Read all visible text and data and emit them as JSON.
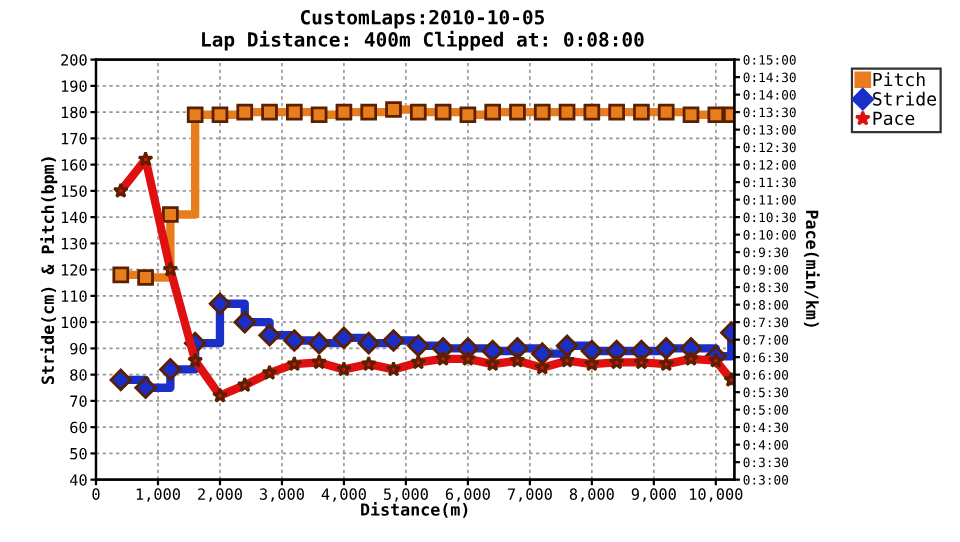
{
  "chart_data": {
    "type": "step",
    "title": "CustomLaps:2010-10-05",
    "subtitle": "Lap Distance: 400m Clipped at: 0:08:00",
    "xlabel": "Distance(m)",
    "ylabel": "Stride(cm) & Pitch(bpm)",
    "y2label": "Pace(min/km)",
    "x": [
      400,
      800,
      1200,
      1600,
      2000,
      2400,
      2800,
      3200,
      3600,
      4000,
      4400,
      4800,
      5200,
      5600,
      6000,
      6400,
      6800,
      7200,
      7600,
      8000,
      8400,
      8800,
      9200,
      9600,
      10000,
      10250
    ],
    "series": [
      {
        "name": "Pitch",
        "color": "#e87d1e",
        "marker": "square",
        "values": [
          118,
          117,
          141,
          179,
          179,
          180,
          180,
          180,
          179,
          180,
          180,
          181,
          180,
          180,
          179,
          180,
          180,
          180,
          180,
          180,
          180,
          180,
          180,
          179,
          179,
          179
        ]
      },
      {
        "name": "Stride",
        "color": "#1a2fc8",
        "marker": "diamond",
        "values": [
          78,
          75,
          82,
          92,
          107,
          100,
          95,
          93,
          92,
          94,
          92,
          93,
          91,
          90,
          90,
          89,
          90,
          88,
          91,
          89,
          89,
          89,
          90,
          90,
          87,
          96
        ]
      },
      {
        "name": "Pace",
        "type": "line",
        "axis": "y2",
        "color": "#e01010",
        "marker": "star",
        "values": [
          11.25,
          12.15,
          9.0,
          6.4,
          5.4,
          5.7,
          6.05,
          6.3,
          6.35,
          6.15,
          6.3,
          6.15,
          6.35,
          6.45,
          6.45,
          6.3,
          6.4,
          6.2,
          6.4,
          6.3,
          6.35,
          6.35,
          6.3,
          6.45,
          6.4,
          5.85
        ]
      }
    ],
    "xlim": [
      0,
      10300
    ],
    "xticks": [
      {
        "value": 0,
        "label": "0"
      },
      {
        "value": 1000,
        "label": "1,000"
      },
      {
        "value": 2000,
        "label": "2,000"
      },
      {
        "value": 3000,
        "label": "3,000"
      },
      {
        "value": 4000,
        "label": "4,000"
      },
      {
        "value": 5000,
        "label": "5,000"
      },
      {
        "value": 6000,
        "label": "6,000"
      },
      {
        "value": 7000,
        "label": "7,000"
      },
      {
        "value": 8000,
        "label": "8,000"
      },
      {
        "value": 9000,
        "label": "9,000"
      },
      {
        "value": 10000,
        "label": "10,000"
      }
    ],
    "ylim": [
      40,
      200
    ],
    "yticks": [
      40,
      50,
      60,
      70,
      80,
      90,
      100,
      110,
      120,
      130,
      140,
      150,
      160,
      170,
      180,
      190,
      200
    ],
    "y2lim": [
      3,
      15
    ],
    "y2ticks": [
      {
        "value": 3,
        "label": "0:3:00"
      },
      {
        "value": 3.5,
        "label": "0:3:30"
      },
      {
        "value": 4,
        "label": "0:4:00"
      },
      {
        "value": 4.5,
        "label": "0:4:30"
      },
      {
        "value": 5,
        "label": "0:5:00"
      },
      {
        "value": 5.5,
        "label": "0:5:30"
      },
      {
        "value": 6,
        "label": "0:6:00"
      },
      {
        "value": 6.5,
        "label": "0:6:30"
      },
      {
        "value": 7,
        "label": "0:7:00"
      },
      {
        "value": 7.5,
        "label": "0:7:30"
      },
      {
        "value": 8,
        "label": "0:8:00"
      },
      {
        "value": 8.5,
        "label": "0:8:30"
      },
      {
        "value": 9,
        "label": "0:9:00"
      },
      {
        "value": 9.5,
        "label": "0:9:30"
      },
      {
        "value": 10,
        "label": "0:10:00"
      },
      {
        "value": 10.5,
        "label": "0:10:30"
      },
      {
        "value": 11,
        "label": "0:11:00"
      },
      {
        "value": 11.5,
        "label": "0:11:30"
      },
      {
        "value": 12,
        "label": "0:12:00"
      },
      {
        "value": 12.5,
        "label": "0:12:30"
      },
      {
        "value": 13,
        "label": "0:13:00"
      },
      {
        "value": 13.5,
        "label": "0:13:30"
      },
      {
        "value": 14,
        "label": "0:14:00"
      },
      {
        "value": 14.5,
        "label": "0:14:30"
      },
      {
        "value": 15,
        "label": "0:15:00"
      }
    ],
    "grid": true,
    "legend": "top right"
  }
}
